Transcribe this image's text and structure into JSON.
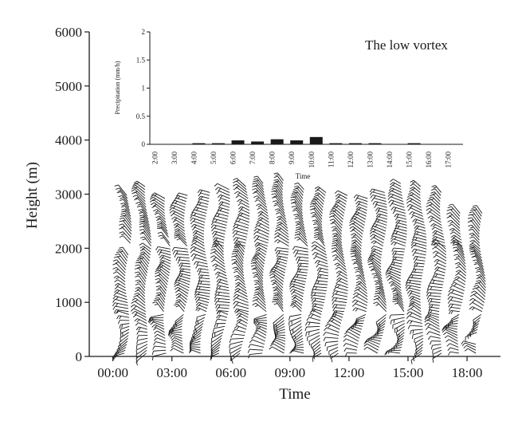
{
  "chart_data": [
    {
      "type": "wind-barb",
      "annotation": "The low vortex",
      "xlabel": "Time",
      "ylabel": "Height (m)",
      "x_ticks": [
        "00:00",
        "03:00",
        "06:00",
        "09:00",
        "12:00",
        "15:00",
        "18:00"
      ],
      "x_range_hours": [
        -1.2,
        19.7
      ],
      "y_ticks": [
        "0",
        "1000",
        "2000",
        "3000",
        "4000",
        "5000",
        "6000"
      ],
      "ylim": [
        0,
        6000
      ],
      "profile_times_hours": [
        0.5,
        1.5,
        2.5,
        3.5,
        4.5,
        5.5,
        6.5,
        7.5,
        8.5,
        9.5,
        10.5,
        11.5,
        12.5,
        13.5,
        14.5,
        15.5,
        16.5,
        17.5,
        18.5
      ],
      "profile_top_heights_m": [
        3000,
        3150,
        2950,
        3000,
        3050,
        3100,
        3150,
        3200,
        3250,
        3100,
        3050,
        3000,
        2950,
        3050,
        3200,
        3150,
        3050,
        2650,
        2650
      ],
      "profile_bottom_heights_m": [
        0,
        0,
        0,
        0,
        0,
        0,
        0,
        0,
        0,
        0,
        0,
        0,
        0,
        0,
        0,
        0,
        0,
        0,
        0
      ],
      "profile_gap_heights_m": [
        [
          1900,
          2050
        ],
        [],
        [
          2100,
          2200
        ],
        [],
        [],
        [],
        [],
        [],
        [],
        [],
        [],
        [],
        [],
        [],
        [],
        [],
        [],
        [],
        [
          250,
          400
        ]
      ]
    },
    {
      "type": "bar",
      "xlabel": "Time",
      "ylabel": "Precipitation (mm/h)",
      "categories": [
        "2:00",
        "3:00",
        "4:00",
        "5:00",
        "6:00",
        "7:00",
        "8:00",
        "9:00",
        "10:00",
        "11:00",
        "12:00",
        "13:00",
        "14:00",
        "15:00",
        "16:00",
        "17:00"
      ],
      "values": [
        0,
        0,
        0.02,
        0.02,
        0.07,
        0.05,
        0.09,
        0.07,
        0.13,
        0.02,
        0.02,
        0.02,
        0,
        0.02,
        0,
        0
      ],
      "y_ticks": [
        "0",
        "0.5",
        "1",
        "1.5",
        "2"
      ],
      "ylim": [
        0,
        2
      ]
    }
  ]
}
